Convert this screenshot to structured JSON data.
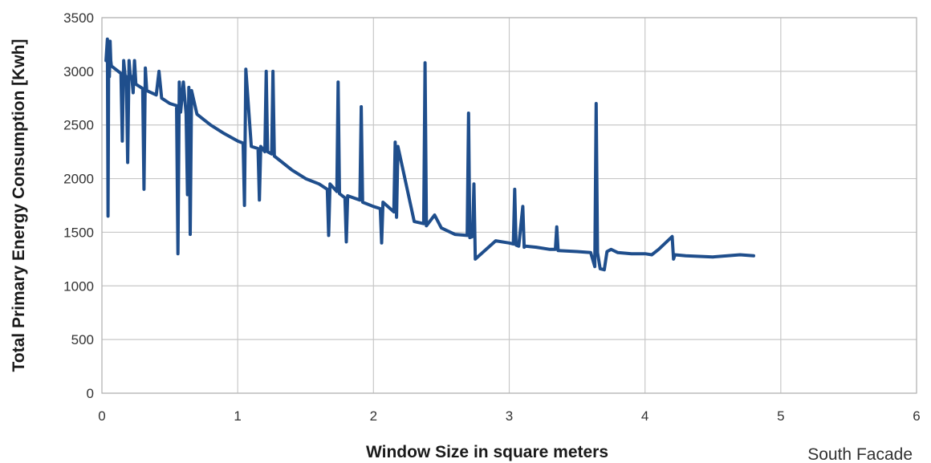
{
  "chart_data": {
    "type": "line",
    "title": "",
    "xlabel": "Window Size in square meters",
    "ylabel": "Total Primary Energy Consumption [Kwh]",
    "annotation": "South Facade",
    "xlim": [
      0,
      6
    ],
    "ylim": [
      0,
      3500
    ],
    "xticks": [
      0,
      1,
      2,
      3,
      4,
      5,
      6
    ],
    "yticks": [
      0,
      500,
      1000,
      1500,
      2000,
      2500,
      3000,
      3500
    ],
    "grid": true,
    "legend": "none",
    "series": [
      {
        "color": "#1f4e8c",
        "x": [
          0.03,
          0.04,
          0.045,
          0.05,
          0.055,
          0.06,
          0.065,
          0.07,
          0.1,
          0.14,
          0.15,
          0.16,
          0.17,
          0.18,
          0.19,
          0.2,
          0.21,
          0.22,
          0.23,
          0.24,
          0.25,
          0.3,
          0.31,
          0.32,
          0.33,
          0.4,
          0.42,
          0.44,
          0.5,
          0.55,
          0.56,
          0.57,
          0.58,
          0.6,
          0.62,
          0.63,
          0.64,
          0.65,
          0.66,
          0.7,
          0.8,
          0.9,
          1.0,
          1.04,
          1.05,
          1.06,
          1.1,
          1.15,
          1.16,
          1.17,
          1.2,
          1.21,
          1.22,
          1.25,
          1.26,
          1.27,
          1.3,
          1.4,
          1.5,
          1.6,
          1.66,
          1.67,
          1.68,
          1.73,
          1.74,
          1.75,
          1.79,
          1.8,
          1.81,
          1.9,
          1.91,
          1.92,
          2.0,
          2.05,
          2.06,
          2.07,
          2.15,
          2.16,
          2.17,
          2.18,
          2.3,
          2.37,
          2.38,
          2.39,
          2.45,
          2.5,
          2.6,
          2.69,
          2.7,
          2.71,
          2.73,
          2.74,
          2.75,
          2.9,
          3.0,
          3.03,
          3.04,
          3.05,
          3.07,
          3.1,
          3.11,
          3.12,
          3.2,
          3.3,
          3.34,
          3.35,
          3.36,
          3.5,
          3.6,
          3.63,
          3.64,
          3.65,
          3.67,
          3.7,
          3.72,
          3.75,
          3.8,
          3.9,
          4.0,
          4.05,
          4.1,
          4.2,
          4.21,
          4.22,
          4.3,
          4.5,
          4.7,
          4.8
        ],
        "y": [
          3100,
          3300,
          1650,
          3280,
          2950,
          3280,
          3100,
          3050,
          3020,
          2980,
          2350,
          3100,
          2960,
          2950,
          2150,
          3100,
          2940,
          2950,
          2800,
          3100,
          2880,
          2840,
          1900,
          3030,
          2820,
          2780,
          3000,
          2750,
          2700,
          2680,
          1300,
          2900,
          2620,
          2900,
          2600,
          1850,
          2850,
          1480,
          2820,
          2600,
          2500,
          2420,
          2350,
          2330,
          1750,
          3020,
          2300,
          2280,
          1800,
          2300,
          2250,
          3000,
          2250,
          2230,
          3000,
          2210,
          2180,
          2080,
          2000,
          1950,
          1900,
          1470,
          1950,
          1880,
          2900,
          1860,
          1820,
          1410,
          1840,
          1800,
          2670,
          1780,
          1740,
          1720,
          1400,
          1780,
          1690,
          2340,
          1640,
          2300,
          1600,
          1580,
          3080,
          1560,
          1660,
          1540,
          1480,
          1470,
          2610,
          1450,
          1460,
          1950,
          1250,
          1420,
          1400,
          1390,
          1900,
          1380,
          1370,
          1740,
          1360,
          1370,
          1360,
          1340,
          1340,
          1550,
          1330,
          1320,
          1310,
          1180,
          2700,
          1310,
          1160,
          1150,
          1320,
          1340,
          1310,
          1300,
          1300,
          1290,
          1340,
          1460,
          1250,
          1290,
          1280,
          1270,
          1290,
          1280
        ]
      }
    ]
  }
}
